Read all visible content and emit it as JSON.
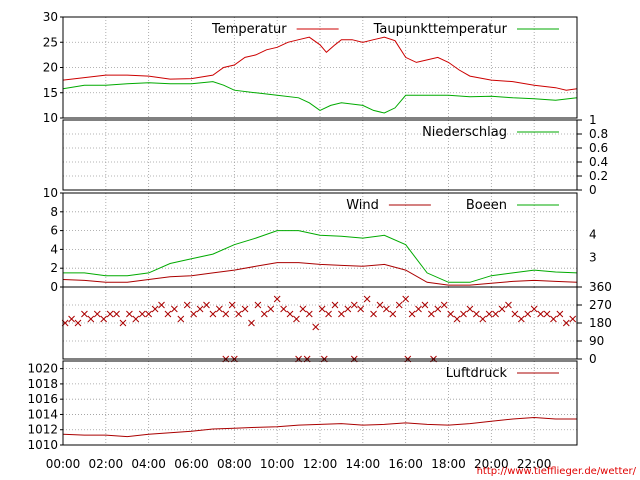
{
  "chart_data": [
    {
      "type": "line",
      "ylim": [
        10,
        30
      ],
      "yticks": [
        "10",
        "15",
        "20",
        "25",
        "30"
      ],
      "ytick_values": [
        10,
        15,
        20,
        25,
        30
      ],
      "grid": true,
      "legend_position": "top-right",
      "series": [
        {
          "name": "Temperatur",
          "color": "#cc0000",
          "x": [
            0,
            1,
            2,
            3,
            4,
            5,
            6,
            7,
            7.5,
            8,
            8.5,
            9,
            9.5,
            10,
            10.5,
            11,
            11.5,
            12,
            12.3,
            12.7,
            13,
            13.5,
            14,
            14.5,
            15,
            15.5,
            16,
            16.5,
            17,
            17.5,
            18,
            18.5,
            19,
            20,
            21,
            22,
            23,
            23.5,
            24
          ],
          "y": [
            17.5,
            18,
            18.5,
            18.5,
            18.3,
            17.7,
            17.8,
            18.5,
            20,
            20.5,
            22,
            22.5,
            23.5,
            24,
            25,
            25.5,
            26,
            24.5,
            23,
            24.5,
            25.5,
            25.5,
            25,
            25.5,
            26,
            25.3,
            22,
            21,
            21.5,
            22,
            21,
            19.5,
            18.3,
            17.5,
            17.2,
            16.5,
            16,
            15.5,
            15.8
          ]
        },
        {
          "name": "Taupunkttemperatur",
          "color": "#00aa00",
          "x": [
            0,
            1,
            2,
            3,
            4,
            5,
            6,
            7,
            7.5,
            8,
            9,
            10,
            11,
            11.5,
            12,
            12.5,
            13,
            14,
            14.5,
            15,
            15.5,
            16,
            17,
            18,
            19,
            20,
            21,
            22,
            23,
            24
          ],
          "y": [
            15.8,
            16.5,
            16.5,
            16.8,
            17,
            16.8,
            16.8,
            17.2,
            16.5,
            15.5,
            15,
            14.5,
            14,
            13,
            11.5,
            12.5,
            13,
            12.5,
            11.5,
            11,
            12,
            14.5,
            14.5,
            14.5,
            14.2,
            14.3,
            14,
            13.8,
            13.5,
            14
          ]
        }
      ]
    },
    {
      "type": "line",
      "ylim": [
        0,
        1
      ],
      "yticks": [
        "0",
        "0.2",
        "0.4",
        "0.6",
        "0.8",
        "1"
      ],
      "ytick_values": [
        0,
        0.2,
        0.4,
        0.6,
        0.8,
        1
      ],
      "yaxis_side": "right",
      "legend_position": "top-right",
      "series": [
        {
          "name": "Niederschlag",
          "color": "#00aa00",
          "x": [
            0,
            24
          ],
          "y": [
            0,
            0
          ]
        }
      ]
    },
    {
      "type": "line",
      "ylim": [
        0,
        10
      ],
      "yticks": [
        "0",
        "2",
        "4",
        "6",
        "8",
        "10"
      ],
      "ytick_values": [
        0,
        2,
        4,
        6,
        8,
        10
      ],
      "yticks_right": [
        "3",
        "4"
      ],
      "yticks_right_values": [
        3.16,
        5.6
      ],
      "legend_position": "top-right",
      "series": [
        {
          "name": "Wind",
          "color": "#aa0000",
          "x": [
            0,
            1,
            2,
            3,
            4,
            5,
            6,
            7,
            8,
            9,
            10,
            11,
            12,
            13,
            14,
            15,
            16,
            17,
            18,
            19,
            20,
            21,
            22,
            23,
            24
          ],
          "y": [
            0.8,
            0.7,
            0.5,
            0.5,
            0.8,
            1.1,
            1.2,
            1.5,
            1.8,
            2.2,
            2.6,
            2.6,
            2.4,
            2.3,
            2.2,
            2.4,
            1.8,
            0.5,
            0.2,
            0.2,
            0.4,
            0.6,
            0.7,
            0.6,
            0.5
          ]
        },
        {
          "name": "Boeen",
          "color": "#00aa00",
          "x": [
            0,
            1,
            2,
            3,
            4,
            5,
            6,
            7,
            8,
            9,
            10,
            11,
            12,
            13,
            14,
            15,
            16,
            17,
            18,
            19,
            20,
            21,
            22,
            23,
            24
          ],
          "y": [
            1.5,
            1.5,
            1.2,
            1.2,
            1.5,
            2.5,
            3,
            3.5,
            4.5,
            5.2,
            6,
            6,
            5.5,
            5.4,
            5.2,
            5.5,
            4.5,
            1.5,
            0.5,
            0.5,
            1.2,
            1.5,
            1.8,
            1.6,
            1.5
          ]
        }
      ]
    },
    {
      "type": "scatter",
      "ylim": [
        0,
        360
      ],
      "yticks": [
        "0",
        "90",
        "180",
        "270",
        "360"
      ],
      "ytick_values": [
        0,
        90,
        180,
        270,
        360
      ],
      "yaxis_side": "right",
      "marker": "x",
      "color": "#aa0000",
      "series": [
        {
          "name": "",
          "x": [
            0.1,
            0.4,
            0.7,
            1.0,
            1.3,
            1.6,
            1.9,
            2.2,
            2.5,
            2.8,
            3.1,
            3.4,
            3.7,
            4.0,
            4.3,
            4.6,
            4.9,
            5.2,
            5.5,
            5.8,
            6.1,
            6.4,
            6.7,
            7.0,
            7.3,
            7.6,
            7.9,
            8.2,
            8.5,
            8.8,
            9.1,
            9.4,
            9.7,
            10.0,
            10.3,
            10.6,
            10.9,
            11.2,
            11.5,
            11.8,
            12.1,
            12.4,
            12.7,
            13.0,
            13.3,
            13.6,
            13.9,
            14.2,
            14.5,
            14.8,
            15.1,
            15.4,
            15.7,
            16.0,
            16.3,
            16.6,
            16.9,
            17.2,
            17.5,
            17.8,
            18.1,
            18.4,
            18.7,
            19.0,
            19.3,
            19.6,
            19.9,
            20.2,
            20.5,
            20.8,
            21.1,
            21.4,
            21.7,
            22.0,
            22.3,
            22.6,
            22.9,
            23.2,
            23.5,
            23.8,
            7.6,
            8.0,
            11.0,
            11.4,
            12.2,
            13.6,
            16.1,
            17.3
          ],
          "y": [
            180,
            200,
            180,
            225,
            200,
            225,
            200,
            225,
            225,
            180,
            225,
            200,
            225,
            225,
            250,
            270,
            225,
            250,
            200,
            270,
            225,
            250,
            270,
            225,
            250,
            225,
            270,
            225,
            250,
            180,
            270,
            225,
            250,
            300,
            250,
            225,
            200,
            250,
            225,
            160,
            250,
            225,
            270,
            225,
            250,
            270,
            250,
            300,
            225,
            270,
            250,
            225,
            270,
            300,
            225,
            250,
            270,
            225,
            250,
            270,
            225,
            200,
            225,
            250,
            225,
            200,
            225,
            225,
            250,
            270,
            225,
            200,
            225,
            250,
            225,
            225,
            200,
            225,
            180,
            200,
            0,
            0,
            0,
            0,
            0,
            0,
            0,
            0
          ]
        }
      ]
    },
    {
      "type": "line",
      "ylim": [
        1010,
        1021
      ],
      "yticks": [
        "1010",
        "1012",
        "1014",
        "1016",
        "1018",
        "1020"
      ],
      "ytick_values": [
        1010,
        1012,
        1014,
        1016,
        1018,
        1020
      ],
      "legend_position": "top-right",
      "series": [
        {
          "name": "Luftdruck",
          "color": "#aa0000",
          "x": [
            0,
            1,
            2,
            3,
            4,
            5,
            6,
            7,
            8,
            9,
            10,
            11,
            12,
            13,
            14,
            15,
            16,
            17,
            18,
            19,
            20,
            21,
            22,
            23,
            24
          ],
          "y": [
            1011.4,
            1011.3,
            1011.3,
            1011.1,
            1011.4,
            1011.6,
            1011.8,
            1012.1,
            1012.2,
            1012.3,
            1012.4,
            1012.6,
            1012.7,
            1012.8,
            1012.6,
            1012.7,
            1012.9,
            1012.7,
            1012.6,
            1012.8,
            1013.1,
            1013.4,
            1013.6,
            1013.4,
            1013.4
          ]
        }
      ]
    }
  ],
  "x_axis": {
    "xlim": [
      0,
      24
    ],
    "tick_values": [
      0,
      2,
      4,
      6,
      8,
      10,
      12,
      14,
      16,
      18,
      20,
      22
    ],
    "tick_labels": [
      "00:00",
      "02:00",
      "04:00",
      "06:00",
      "08:00",
      "10:00",
      "12:00",
      "14:00",
      "16:00",
      "18:00",
      "20:00",
      "22:00"
    ]
  },
  "footer_url": "http://www.tiefflieger.de/wetter/"
}
